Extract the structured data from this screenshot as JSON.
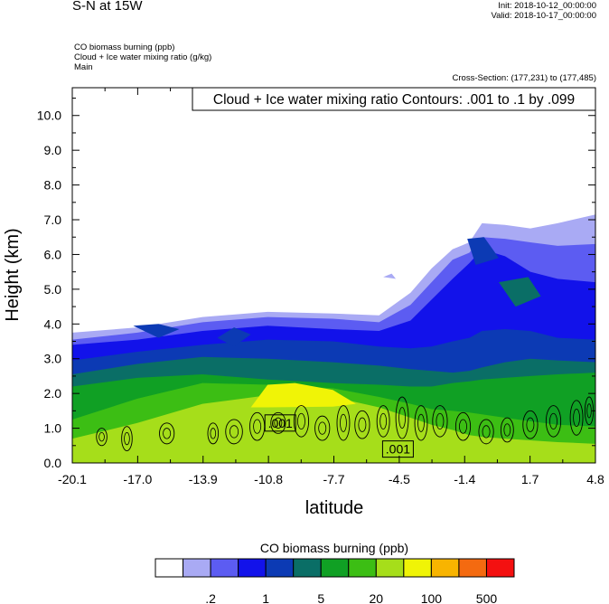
{
  "header": {
    "title": "S-N at 15W",
    "init": "Init: 2018-10-12_00:00:00",
    "valid": "Valid: 2018-10-17_00:00:00",
    "fields": [
      "CO biomass burning   (ppb)",
      "Cloud + Ice water mixing ratio   (g/kg)",
      "Main"
    ],
    "cross_section": "Cross-Section: (177,231) to (177,485)"
  },
  "chart_data": {
    "type": "heatmap",
    "title": "S-N at 15W",
    "xlabel": "latitude",
    "ylabel": "Height (km)",
    "xlim": [
      -20.1,
      4.8
    ],
    "ylim": [
      0.0,
      10.8
    ],
    "xticks": [
      "-20.1",
      "-17.0",
      "-13.9",
      "-10.8",
      "-7.7",
      "-4.5",
      "-1.4",
      "1.7",
      "4.8"
    ],
    "yticks": [
      "0.0",
      "1.0",
      "2.0",
      "3.0",
      "4.0",
      "5.0",
      "6.0",
      "7.0",
      "8.0",
      "9.0",
      "10.0"
    ],
    "contour_info": "Cloud + Ice water mixing ratio Contours: .001 to .1 by .099",
    "contour_labels": [
      {
        "text": ".001",
        "lat": -10.2,
        "z": 1.15
      },
      {
        "text": ".001",
        "lat": -4.6,
        "z": 0.4
      }
    ],
    "colorbar": {
      "title": "CO biomass burning  (ppb)",
      "labels": [
        ".2",
        "1",
        "5",
        "20",
        "100",
        "500"
      ],
      "colors": [
        "#ffffff",
        "#a9aaf4",
        "#5c5cf2",
        "#1212ea",
        "#0c3ab4",
        "#0a6e66",
        "#10a024",
        "#3cbe14",
        "#a6de1a",
        "#f0f406",
        "#f8b400",
        "#f46a10",
        "#f41010"
      ]
    },
    "bands": [
      {
        "color": "#a9aaf4",
        "top": [
          [
            -20.1,
            3.75
          ],
          [
            -17.0,
            3.9
          ],
          [
            -13.9,
            4.2
          ],
          [
            -10.8,
            4.35
          ],
          [
            -7.7,
            4.3
          ],
          [
            -5.5,
            4.25
          ],
          [
            -4.0,
            4.9
          ],
          [
            -3.0,
            5.6
          ],
          [
            -2.0,
            6.15
          ],
          [
            -1.2,
            6.35
          ],
          [
            -0.6,
            6.9
          ],
          [
            0.5,
            6.85
          ],
          [
            1.7,
            6.75
          ],
          [
            3.0,
            6.9
          ],
          [
            4.8,
            7.15
          ]
        ]
      },
      {
        "color": "#5c5cf2",
        "top": [
          [
            -20.1,
            3.55
          ],
          [
            -17.0,
            3.75
          ],
          [
            -13.9,
            4.05
          ],
          [
            -10.8,
            4.2
          ],
          [
            -7.7,
            4.15
          ],
          [
            -5.5,
            4.05
          ],
          [
            -4.0,
            4.55
          ],
          [
            -3.0,
            5.2
          ],
          [
            -2.0,
            5.85
          ],
          [
            -1.2,
            6.05
          ],
          [
            -0.6,
            6.5
          ],
          [
            0.5,
            6.45
          ],
          [
            1.7,
            6.35
          ],
          [
            3.0,
            6.25
          ],
          [
            4.8,
            6.3
          ]
        ]
      },
      {
        "color": "#1212ea",
        "top": [
          [
            -20.1,
            3.4
          ],
          [
            -17.0,
            3.55
          ],
          [
            -13.9,
            3.8
          ],
          [
            -10.8,
            3.95
          ],
          [
            -7.7,
            3.85
          ],
          [
            -5.5,
            3.8
          ],
          [
            -4.0,
            4.1
          ],
          [
            -3.0,
            4.7
          ],
          [
            -2.0,
            5.3
          ],
          [
            -1.2,
            5.75
          ],
          [
            -0.6,
            6.15
          ],
          [
            0.5,
            5.95
          ],
          [
            1.7,
            5.5
          ],
          [
            3.0,
            5.3
          ],
          [
            4.8,
            5.2
          ]
        ]
      },
      {
        "color": "#0c3ab4",
        "top": [
          [
            -20.1,
            2.95
          ],
          [
            -17.0,
            3.2
          ],
          [
            -13.9,
            3.4
          ],
          [
            -10.8,
            3.55
          ],
          [
            -7.7,
            3.5
          ],
          [
            -5.5,
            3.35
          ],
          [
            -4.0,
            3.3
          ],
          [
            -3.0,
            3.35
          ],
          [
            -2.0,
            3.5
          ],
          [
            -1.2,
            3.6
          ],
          [
            -0.6,
            3.8
          ],
          [
            0.5,
            3.85
          ],
          [
            1.7,
            3.8
          ],
          [
            3.0,
            3.6
          ],
          [
            4.8,
            3.55
          ]
        ]
      },
      {
        "color": "#0a6e66",
        "top": [
          [
            -20.1,
            2.55
          ],
          [
            -17.0,
            2.85
          ],
          [
            -13.9,
            3.05
          ],
          [
            -10.8,
            3.0
          ],
          [
            -7.7,
            2.9
          ],
          [
            -5.5,
            2.8
          ],
          [
            -4.0,
            2.7
          ],
          [
            -3.0,
            2.65
          ],
          [
            -2.0,
            2.6
          ],
          [
            -1.2,
            2.65
          ],
          [
            -0.6,
            2.75
          ],
          [
            0.5,
            2.9
          ],
          [
            1.7,
            3.0
          ],
          [
            3.0,
            2.95
          ],
          [
            4.8,
            2.9
          ]
        ]
      },
      {
        "color": "#10a024",
        "top": [
          [
            -20.1,
            2.2
          ],
          [
            -17.0,
            2.45
          ],
          [
            -13.9,
            2.55
          ],
          [
            -10.8,
            2.4
          ],
          [
            -7.7,
            2.3
          ],
          [
            -5.5,
            2.25
          ],
          [
            -4.0,
            2.2
          ],
          [
            -3.0,
            2.2
          ],
          [
            -2.0,
            2.3
          ],
          [
            -1.2,
            2.35
          ],
          [
            -0.6,
            2.4
          ],
          [
            0.5,
            2.45
          ],
          [
            1.7,
            2.5
          ],
          [
            3.0,
            2.55
          ],
          [
            4.8,
            2.6
          ]
        ]
      },
      {
        "color": "#3cbe14",
        "top": [
          [
            -20.1,
            1.25
          ],
          [
            -17.0,
            1.85
          ],
          [
            -13.9,
            2.3
          ],
          [
            -10.8,
            2.25
          ],
          [
            -7.7,
            2.15
          ],
          [
            -5.5,
            1.9
          ],
          [
            -4.0,
            1.7
          ],
          [
            -3.0,
            1.55
          ],
          [
            -2.0,
            1.5
          ],
          [
            -1.2,
            1.45
          ],
          [
            -0.6,
            1.4
          ],
          [
            0.5,
            1.3
          ],
          [
            1.7,
            1.2
          ],
          [
            3.0,
            1.1
          ],
          [
            4.8,
            1.05
          ]
        ]
      },
      {
        "color": "#a6de1a",
        "top": [
          [
            -20.1,
            0.7
          ],
          [
            -17.0,
            1.15
          ],
          [
            -13.9,
            1.7
          ],
          [
            -10.8,
            1.95
          ],
          [
            -7.7,
            1.9
          ],
          [
            -5.5,
            1.6
          ],
          [
            -4.0,
            1.3
          ],
          [
            -3.0,
            1.1
          ],
          [
            -2.0,
            0.95
          ],
          [
            -1.2,
            0.8
          ],
          [
            -0.6,
            0.75
          ],
          [
            0.5,
            0.7
          ],
          [
            1.7,
            0.65
          ],
          [
            3.0,
            0.6
          ],
          [
            4.8,
            0.55
          ]
        ]
      },
      {
        "color": "#f0f406",
        "top": [
          [
            -11.6,
            1.6
          ],
          [
            -10.8,
            2.25
          ],
          [
            -9.5,
            2.3
          ],
          [
            -7.7,
            2.1
          ],
          [
            -6.6,
            1.7
          ],
          [
            -7.7,
            1.62
          ],
          [
            -10.8,
            1.6
          ]
        ]
      }
    ],
    "patches": [
      {
        "color": "#0c3ab4",
        "points": [
          [
            -17.2,
            3.95
          ],
          [
            -16.0,
            4.0
          ],
          [
            -15.0,
            3.85
          ],
          [
            -16.0,
            3.6
          ]
        ]
      },
      {
        "color": "#0c3ab4",
        "points": [
          [
            -13.2,
            3.6
          ],
          [
            -12.4,
            3.9
          ],
          [
            -11.6,
            3.7
          ],
          [
            -12.4,
            3.35
          ]
        ]
      },
      {
        "color": "#0c3ab4",
        "points": [
          [
            -1.3,
            6.45
          ],
          [
            -0.5,
            6.5
          ],
          [
            0.2,
            5.9
          ],
          [
            -0.9,
            5.7
          ]
        ]
      },
      {
        "color": "#0a6e66",
        "points": [
          [
            0.2,
            5.2
          ],
          [
            1.6,
            5.35
          ],
          [
            2.2,
            4.8
          ],
          [
            1.0,
            4.5
          ]
        ]
      },
      {
        "color": "#a9aaf4",
        "points": [
          [
            -5.3,
            5.35
          ],
          [
            -4.9,
            5.45
          ],
          [
            -4.7,
            5.3
          ]
        ]
      }
    ],
    "contours": [
      {
        "lat": -18.7,
        "z": 0.75,
        "rx": 0.25,
        "ry": 0.25
      },
      {
        "lat": -17.5,
        "z": 0.7,
        "rx": 0.25,
        "ry": 0.35
      },
      {
        "lat": -15.6,
        "z": 0.85,
        "rx": 0.35,
        "ry": 0.3
      },
      {
        "lat": -13.4,
        "z": 0.85,
        "rx": 0.25,
        "ry": 0.3
      },
      {
        "lat": -12.4,
        "z": 0.9,
        "rx": 0.4,
        "ry": 0.35
      },
      {
        "lat": -11.3,
        "z": 1.05,
        "rx": 0.35,
        "ry": 0.4
      },
      {
        "lat": -10.3,
        "z": 1.15,
        "rx": 0.35,
        "ry": 0.3
      },
      {
        "lat": -9.2,
        "z": 1.2,
        "rx": 0.35,
        "ry": 0.45
      },
      {
        "lat": -8.2,
        "z": 1.0,
        "rx": 0.35,
        "ry": 0.35
      },
      {
        "lat": -7.2,
        "z": 1.15,
        "rx": 0.3,
        "ry": 0.5
      },
      {
        "lat": -6.3,
        "z": 1.1,
        "rx": 0.35,
        "ry": 0.4
      },
      {
        "lat": -5.3,
        "z": 1.2,
        "rx": 0.3,
        "ry": 0.45
      },
      {
        "lat": -4.4,
        "z": 1.3,
        "rx": 0.3,
        "ry": 0.6
      },
      {
        "lat": -3.5,
        "z": 1.15,
        "rx": 0.3,
        "ry": 0.5
      },
      {
        "lat": -2.6,
        "z": 1.2,
        "rx": 0.35,
        "ry": 0.45
      },
      {
        "lat": -1.5,
        "z": 1.05,
        "rx": 0.35,
        "ry": 0.4
      },
      {
        "lat": -0.4,
        "z": 0.9,
        "rx": 0.35,
        "ry": 0.35
      },
      {
        "lat": 0.6,
        "z": 0.95,
        "rx": 0.3,
        "ry": 0.35
      },
      {
        "lat": 1.7,
        "z": 1.1,
        "rx": 0.35,
        "ry": 0.4
      },
      {
        "lat": 2.8,
        "z": 1.2,
        "rx": 0.35,
        "ry": 0.45
      },
      {
        "lat": 3.9,
        "z": 1.3,
        "rx": 0.3,
        "ry": 0.5
      },
      {
        "lat": 4.5,
        "z": 1.5,
        "rx": 0.2,
        "ry": 0.4
      }
    ]
  }
}
